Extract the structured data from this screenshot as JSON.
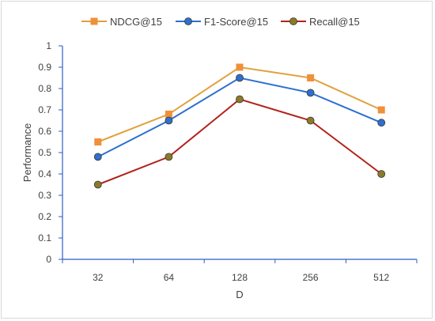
{
  "chart_data": {
    "type": "line",
    "xlabel": "D",
    "ylabel": "Performance",
    "categories": [
      "32",
      "64",
      "128",
      "256",
      "512"
    ],
    "ylim": [
      0,
      1
    ],
    "yticks": [
      "0",
      "0.1",
      "0.2",
      "0.3",
      "0.4",
      "0.5",
      "0.6",
      "0.7",
      "0.8",
      "0.9",
      "1"
    ],
    "grid": false,
    "legend_position": "top",
    "series": [
      {
        "name": "NDCG@15",
        "values": [
          0.55,
          0.68,
          0.9,
          0.85,
          0.7
        ],
        "line_color": "#e0a13c",
        "marker": "square",
        "marker_color": "#f0903a"
      },
      {
        "name": "F1-Score@15",
        "values": [
          0.48,
          0.65,
          0.85,
          0.78,
          0.64
        ],
        "line_color": "#2e6fd0",
        "marker": "circle",
        "marker_color": "#2e6fd0"
      },
      {
        "name": "Recall@15",
        "values": [
          0.35,
          0.48,
          0.75,
          0.65,
          0.4
        ],
        "line_color": "#b2221c",
        "marker": "circle",
        "marker_color": "#8a7a2a"
      }
    ],
    "axis_color": "#2f5ec4"
  }
}
